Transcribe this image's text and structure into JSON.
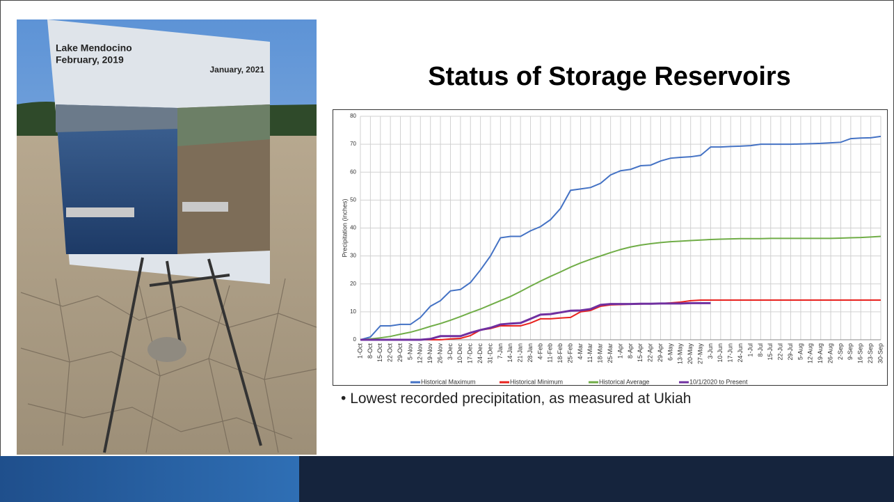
{
  "slide": {
    "title": "Status of Storage Reservoirs",
    "bullet": "Lowest recorded precipitation, as measured at Ukiah",
    "photo": {
      "sign_left": "Lake Mendocino",
      "sign_left_date": "February, 2019",
      "sign_right": "January, 2021"
    }
  },
  "chart_data": {
    "type": "line",
    "ylabel": "Precipitation (inches)",
    "categories": [
      "1-Oct",
      "8-Oct",
      "15-Oct",
      "22-Oct",
      "29-Oct",
      "5-Nov",
      "12-Nov",
      "19-Nov",
      "26-Nov",
      "3-Dec",
      "10-Dec",
      "17-Dec",
      "24-Dec",
      "31-Dec",
      "7-Jan",
      "14-Jan",
      "21-Jan",
      "28-Jan",
      "4-Feb",
      "11-Feb",
      "18-Feb",
      "25-Feb",
      "4-Mar",
      "11-Mar",
      "18-Mar",
      "25-Mar",
      "1-Apr",
      "8-Apr",
      "15-Apr",
      "22-Apr",
      "29-Apr",
      "6-May",
      "13-May",
      "20-May",
      "27-May",
      "3-Jun",
      "10-Jun",
      "17-Jun",
      "24-Jun",
      "1-Jul",
      "8-Jul",
      "15-Jul",
      "22-Jul",
      "29-Jul",
      "5-Aug",
      "12-Aug",
      "19-Aug",
      "26-Aug",
      "2-Sep",
      "9-Sep",
      "16-Sep",
      "23-Sep",
      "30-Sep"
    ],
    "series": [
      {
        "name": "Historical Maximum",
        "color": "#4472c4",
        "values": [
          0,
          1,
          5,
          5,
          5.5,
          5.5,
          8,
          12,
          14,
          17.5,
          18,
          20.5,
          25,
          30,
          36.5,
          37,
          37,
          39,
          40.5,
          43,
          47,
          53.5,
          54,
          54.5,
          56,
          59,
          60.5,
          61,
          62.3,
          62.5,
          64,
          65,
          65.3,
          65.5,
          66,
          69,
          69,
          69.2,
          69.3,
          69.5,
          70,
          70,
          70,
          70,
          70.1,
          70.2,
          70.3,
          70.5,
          70.7,
          72,
          72.2,
          72.3,
          72.8
        ]
      },
      {
        "name": "Historical Minimum",
        "color": "#e8221e",
        "values": [
          0,
          0,
          0,
          0,
          0,
          0,
          0,
          0,
          0,
          0.3,
          0.5,
          1.5,
          3.5,
          4,
          5,
          5,
          5,
          6,
          7.5,
          7.5,
          7.8,
          8,
          10,
          10.5,
          12,
          12.5,
          12.6,
          12.7,
          12.8,
          12.9,
          13,
          13.2,
          13.5,
          14,
          14.2,
          14.2,
          14.2,
          14.2,
          14.2,
          14.2,
          14.2,
          14.2,
          14.2,
          14.2,
          14.2,
          14.2,
          14.2,
          14.2,
          14.2,
          14.2,
          14.2,
          14.2,
          14.2
        ]
      },
      {
        "name": "Historical Average",
        "color": "#70ad47",
        "values": [
          0,
          0.3,
          0.7,
          1.2,
          2,
          2.7,
          3.7,
          4.8,
          5.8,
          7,
          8.3,
          9.7,
          11,
          12.5,
          14,
          15.5,
          17.3,
          19.2,
          21,
          22.7,
          24.3,
          26,
          27.5,
          28.8,
          30,
          31.2,
          32.3,
          33.2,
          33.9,
          34.4,
          34.8,
          35.1,
          35.3,
          35.5,
          35.7,
          35.9,
          36,
          36.1,
          36.2,
          36.2,
          36.2,
          36.3,
          36.3,
          36.3,
          36.3,
          36.3,
          36.3,
          36.3,
          36.4,
          36.5,
          36.6,
          36.8,
          37
        ]
      },
      {
        "name": "10/1/2020 to Present",
        "color": "#7030a0",
        "values": [
          0,
          0,
          0,
          0,
          0,
          0,
          0,
          0.3,
          1.3,
          1.3,
          1.3,
          2.5,
          3.5,
          4.3,
          5.5,
          5.8,
          6,
          7.5,
          9,
          9.2,
          9.8,
          10.4,
          10.5,
          11,
          12.5,
          12.8,
          12.8,
          12.8,
          12.9,
          12.9,
          13,
          13,
          13,
          13.1,
          13.1,
          13.1,
          null,
          null,
          null,
          null,
          null,
          null,
          null,
          null,
          null,
          null,
          null,
          null,
          null,
          null,
          null,
          null,
          null
        ]
      }
    ],
    "ylim": [
      0,
      80
    ],
    "yticks": [
      0,
      10,
      20,
      30,
      40,
      50,
      60,
      70,
      80
    ],
    "grid": true,
    "legend": "bottom"
  }
}
